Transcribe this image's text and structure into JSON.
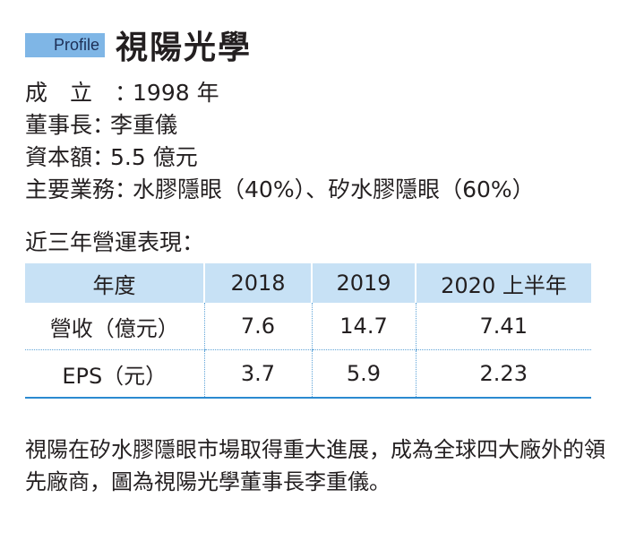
{
  "header": {
    "tag": "Profile",
    "company": "視陽光學"
  },
  "info": [
    {
      "label": "成立",
      "value": "1998 年"
    },
    {
      "label": "董事長",
      "value": "李重儀"
    },
    {
      "label": "資本額",
      "value": "5.5 億元"
    },
    {
      "label": "主要業務",
      "value": "水膠隱眼（40%）、矽水膠隱眼（60%）"
    }
  ],
  "section_title": "近三年營運表現：",
  "table": {
    "headers": [
      "年度",
      "2018",
      "2019",
      "2020 上半年"
    ],
    "rows": [
      [
        "營收（億元）",
        "7.6",
        "14.7",
        "7.41"
      ],
      [
        "EPS（元）",
        "3.7",
        "5.9",
        "2.23"
      ]
    ]
  },
  "caption": "視陽在矽水膠隱眼市場取得重大進展，成為全球四大廠外的領先廠商，圖為視陽光學董事長李重儀。",
  "colors": {
    "tag_bg": "#7fb6e6",
    "header_bg": "#c7e1f5",
    "rule": "#2b8ad0",
    "text": "#231f20"
  }
}
